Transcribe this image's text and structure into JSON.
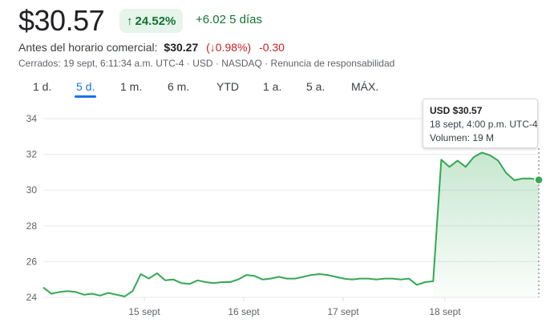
{
  "quote": {
    "price": "$30.57",
    "change_pct": "24.52%",
    "change_abs_range": "+6.02 5 días",
    "up_color": "#137333",
    "down_color": "#c5221f"
  },
  "premarket": {
    "label": "Antes del horario comercial:",
    "price": "$30.27",
    "pct": "(↓0.98%)",
    "change": "-0.30"
  },
  "status_line": "Cerrados: 19 sept, 6:11:34 a.m. UTC-4 · USD · NASDAQ · Renuncia de responsabilidad",
  "range_tabs": [
    {
      "label": "1 d.",
      "active": false
    },
    {
      "label": "5 d.",
      "active": true
    },
    {
      "label": "1 m.",
      "active": false
    },
    {
      "label": "6 m.",
      "active": false
    },
    {
      "label": "YTD",
      "active": false
    },
    {
      "label": "1 a.",
      "active": false
    },
    {
      "label": "5 a.",
      "active": false
    },
    {
      "label": "MÁX.",
      "active": false
    }
  ],
  "tooltip": {
    "price": "USD $30.57",
    "time": "18 sept, 4:00 p.m. UTC-4",
    "volume": "Volumen: 19 M"
  },
  "chart_data": {
    "type": "line",
    "title": "",
    "xlabel": "",
    "ylabel": "",
    "x_tick_labels": [
      "15 sept",
      "16 sept",
      "17 sept",
      "18 sept"
    ],
    "y_ticks": [
      24,
      26,
      28,
      30,
      32,
      34
    ],
    "ylim": [
      24,
      34
    ],
    "grid": true,
    "line_color": "#34a853",
    "series": [
      {
        "name": "",
        "values": [
          24.55,
          24.2,
          24.3,
          24.35,
          24.3,
          24.15,
          24.2,
          24.1,
          24.25,
          24.15,
          24.05,
          24.35,
          25.3,
          25.05,
          25.35,
          24.95,
          25.0,
          24.8,
          24.75,
          24.95,
          24.85,
          24.8,
          24.85,
          24.85,
          25.0,
          25.25,
          25.2,
          25.0,
          25.05,
          25.15,
          25.05,
          25.05,
          25.15,
          25.25,
          25.3,
          25.25,
          25.15,
          25.05,
          25.0,
          25.05,
          25.05,
          25.0,
          25.05,
          25.05,
          25.0,
          25.05,
          24.7,
          24.85,
          24.9,
          31.7,
          31.3,
          31.65,
          31.3,
          31.85,
          32.1,
          31.95,
          31.65,
          30.95,
          30.55,
          30.65,
          30.65,
          30.57
        ]
      }
    ]
  }
}
